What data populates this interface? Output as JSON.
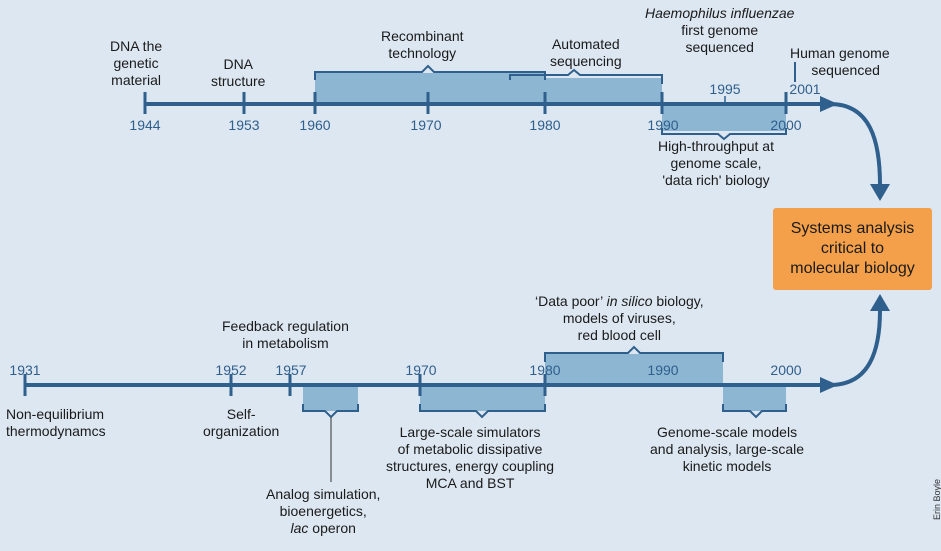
{
  "top_timeline": {
    "years": [
      "1944",
      "1953",
      "1960",
      "1970",
      "1980",
      "1990",
      "2000",
      "1995",
      "2001"
    ],
    "events": {
      "dna_material": "DNA the\ngenetic\nmaterial",
      "dna_structure": "DNA\nstructure",
      "recombinant": "Recombinant\ntechnology",
      "automated": "Automated\nsequencing",
      "haemophilus_italic": "Haemophilus influenzae",
      "haemophilus_rest": "first genome\nsequenced",
      "human_genome": "Human genome\n   sequenced",
      "high_throughput": "High-throughput at\ngenome scale,\n'data rich' biology"
    }
  },
  "bottom_timeline": {
    "years": [
      "1931",
      "1952",
      "1957",
      "1970",
      "1980",
      "1990",
      "2000"
    ],
    "events": {
      "non_equilibrium": "Non-equilibrium\nthermodynamcs",
      "self_org": "Self-\norganization",
      "feedback": "Feedback regulation\nin metabolism",
      "analog_line1": "Analog simulation,\nbioenergetics,",
      "analog_italic": "lac",
      "analog_rest": " operon",
      "large_scale": "Large-scale simulators\nof metabolic dissipative\nstructures, energy coupling\nMCA and BST",
      "data_poor_pre": "‘Data poor’ ",
      "data_poor_italic": "in silico",
      "data_poor_post": " biology,",
      "data_poor_rest": "models of viruses,\nred blood cell",
      "genome_scale": "Genome-scale models\nand analysis, large-scale\nkinetic models"
    }
  },
  "systems_box": "Systems analysis\ncritical to\nmolecular biology",
  "credit": "Erin Boyle",
  "colors": {
    "axis": "#2f5f8c",
    "band": "#8db6d3",
    "box": "#f4a04a",
    "background": "#dde7f1"
  }
}
